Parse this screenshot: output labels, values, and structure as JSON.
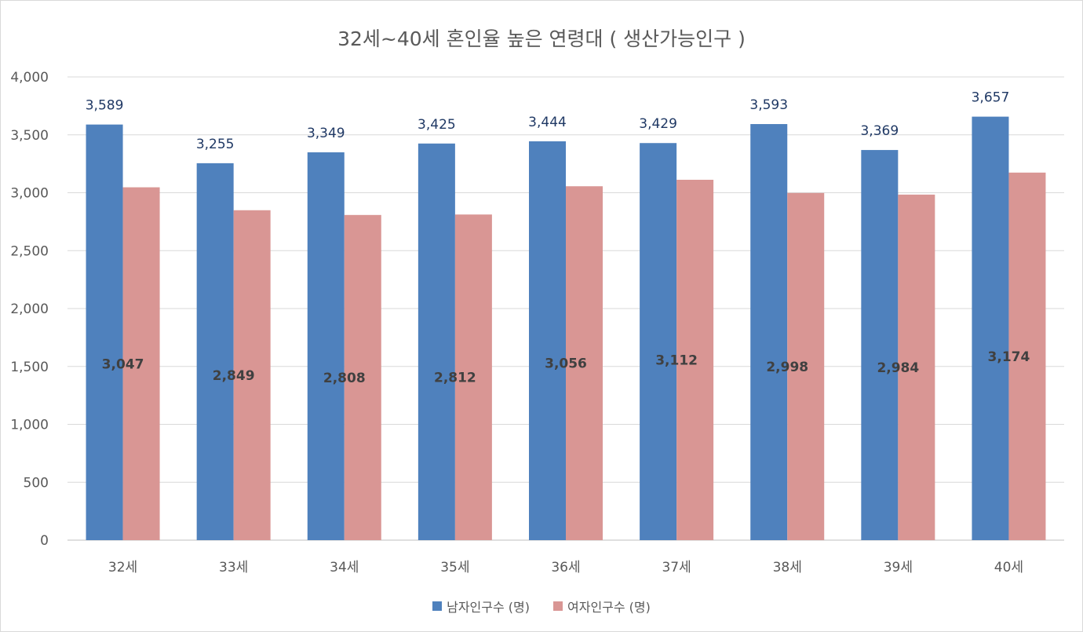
{
  "chart_data": {
    "type": "bar",
    "title": "32세~40세 혼인율 높은 연령대 ( 생산가능인구 )",
    "categories": [
      "32세",
      "33세",
      "34세",
      "35세",
      "36세",
      "37세",
      "38세",
      "39세",
      "40세"
    ],
    "series": [
      {
        "name": "남자인구수 (명)",
        "values": [
          3589,
          3255,
          3349,
          3425,
          3444,
          3429,
          3593,
          3369,
          3657
        ],
        "color": "#4f81bd"
      },
      {
        "name": "여자인구수 (명)",
        "values": [
          3047,
          2849,
          2808,
          2812,
          3056,
          3112,
          2998,
          2984,
          3174
        ],
        "color": "#d99694"
      }
    ],
    "data_labels": {
      "male": [
        "3,589",
        "3,255",
        "3,349",
        "3,425",
        "3,444",
        "3,429",
        "3,593",
        "3,369",
        "3,657"
      ],
      "female": [
        "3,047",
        "2,849",
        "2,808",
        "2,812",
        "3,056",
        "3,112",
        "2,998",
        "2,984",
        "3,174"
      ]
    },
    "ylim": [
      0,
      4000
    ],
    "yticks": [
      "0",
      "500",
      "1,000",
      "1,500",
      "2,000",
      "2,500",
      "3,000",
      "3,500",
      "4,000"
    ],
    "grid": true,
    "legend": "bottom"
  }
}
